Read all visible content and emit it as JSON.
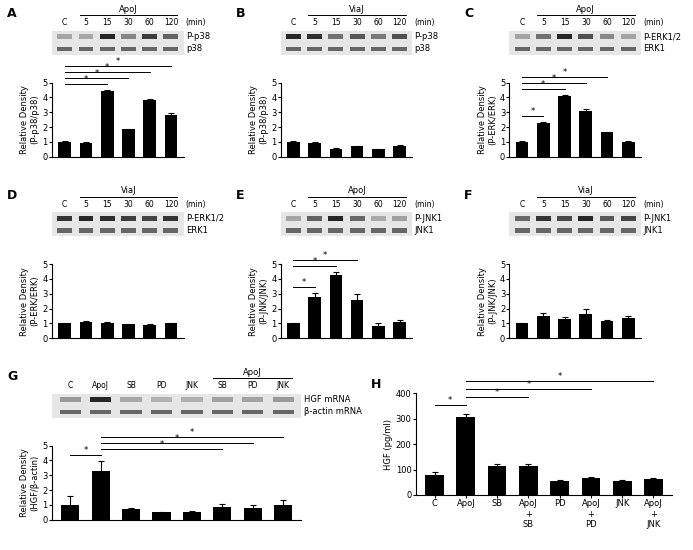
{
  "chart_data": [
    {
      "panel": "A",
      "type": "bar",
      "categories": [
        "C",
        "5",
        "15",
        "30",
        "60",
        "120"
      ],
      "values": [
        1.0,
        0.95,
        4.4,
        1.85,
        3.8,
        2.8
      ],
      "errors": [
        0.08,
        0.05,
        0.12,
        0.05,
        0.12,
        0.12
      ],
      "ylim": [
        0,
        5
      ],
      "yticks": [
        0,
        1,
        2,
        3,
        4,
        5
      ],
      "ylabel": "Relative Density\n(P-p38/p38)",
      "color": "#000000",
      "tick_labels": "y",
      "blot": {
        "rows": [
          "P-p38",
          "p38"
        ],
        "header": "ApoJ",
        "header_span": [
          1,
          5
        ],
        "unit": "(min)"
      },
      "significance": [
        {
          "from": 0,
          "to": 2,
          "label": "*"
        },
        {
          "from": 0,
          "to": 3,
          "label": "*"
        },
        {
          "from": 0,
          "to": 4,
          "label": "*"
        },
        {
          "from": 0,
          "to": 5,
          "label": "*"
        }
      ]
    },
    {
      "panel": "B",
      "type": "bar",
      "categories": [
        "C",
        "5",
        "15",
        "30",
        "60",
        "120"
      ],
      "values": [
        1.0,
        0.95,
        0.55,
        0.7,
        0.5,
        0.75
      ],
      "errors": [
        0.05,
        0.04,
        0.03,
        0.04,
        0.03,
        0.04
      ],
      "ylim": [
        0,
        5
      ],
      "yticks": [
        0,
        1,
        2,
        3,
        4,
        5
      ],
      "ylabel": "Relative Density\n(P-p38/p38)",
      "color": "#000000",
      "tick_labels": "y",
      "blot": {
        "rows": [
          "P-p38",
          "p38"
        ],
        "header": "ViaJ",
        "header_span": [
          1,
          5
        ],
        "unit": "(min)"
      },
      "significance": []
    },
    {
      "panel": "C",
      "type": "bar",
      "categories": [
        "C",
        "5",
        "15",
        "30",
        "60",
        "120"
      ],
      "values": [
        1.0,
        2.25,
        4.1,
        3.1,
        1.65,
        1.0
      ],
      "errors": [
        0.05,
        0.08,
        0.06,
        0.1,
        0.05,
        0.05
      ],
      "ylim": [
        0,
        5
      ],
      "yticks": [
        0,
        1,
        2,
        3,
        4,
        5
      ],
      "ylabel": "Relative Density\n(P-ERK/ERK)",
      "color": "#000000",
      "tick_labels": "y",
      "blot": {
        "rows": [
          "P-ERK1/2",
          "ERK1"
        ],
        "header": "ApoJ",
        "header_span": [
          1,
          5
        ],
        "unit": "(min)"
      },
      "significance": [
        {
          "from": 0,
          "to": 1,
          "label": "*"
        },
        {
          "from": 0,
          "to": 2,
          "label": "*"
        },
        {
          "from": 0,
          "to": 3,
          "label": "*"
        },
        {
          "from": 0,
          "to": 4,
          "label": "*"
        }
      ]
    },
    {
      "panel": "D",
      "type": "bar",
      "categories": [
        "C",
        "5",
        "15",
        "30",
        "60",
        "120"
      ],
      "values": [
        1.0,
        1.1,
        1.05,
        0.95,
        0.9,
        1.0
      ],
      "errors": [
        0.03,
        0.03,
        0.03,
        0.03,
        0.04,
        0.03
      ],
      "ylim": [
        0,
        5
      ],
      "yticks": [
        0,
        1,
        2,
        3,
        4,
        5
      ],
      "ylabel": "Relative Density\n(P-ERK/ERK)",
      "color": "#000000",
      "tick_labels": "y",
      "blot": {
        "rows": [
          "P-ERK1/2",
          "ERK1"
        ],
        "header": "ViaJ",
        "header_span": [
          1,
          5
        ],
        "unit": "(min)"
      },
      "significance": []
    },
    {
      "panel": "E",
      "type": "bar",
      "categories": [
        "C",
        "5",
        "15",
        "30",
        "60",
        "120"
      ],
      "values": [
        1.0,
        2.75,
        4.25,
        2.6,
        0.85,
        1.1
      ],
      "errors": [
        0.05,
        0.3,
        0.2,
        0.35,
        0.2,
        0.1
      ],
      "ylim": [
        0,
        5
      ],
      "yticks": [
        0,
        1,
        2,
        3,
        4,
        5
      ],
      "ylabel": "Relative Density\n(P-JNK/JNK)",
      "color": "#000000",
      "tick_labels": "y",
      "blot": {
        "rows": [
          "P-JNK1",
          "JNK1"
        ],
        "header": "ApoJ",
        "header_span": [
          1,
          5
        ],
        "unit": "(min)"
      },
      "significance": [
        {
          "from": 0,
          "to": 1,
          "label": "*"
        },
        {
          "from": 0,
          "to": 2,
          "label": "*"
        },
        {
          "from": 0,
          "to": 3,
          "label": "*"
        }
      ]
    },
    {
      "panel": "F",
      "type": "bar",
      "categories": [
        "C",
        "5",
        "15",
        "30",
        "60",
        "120"
      ],
      "values": [
        1.0,
        1.5,
        1.3,
        1.65,
        1.15,
        1.35
      ],
      "errors": [
        0.05,
        0.2,
        0.15,
        0.3,
        0.1,
        0.15
      ],
      "ylim": [
        0,
        5
      ],
      "yticks": [
        0,
        1,
        2,
        3,
        4,
        5
      ],
      "ylabel": "Relative Density\n(P-JNK/JNK)",
      "color": "#000000",
      "tick_labels": "y",
      "blot": {
        "rows": [
          "P-JNK1",
          "JNK1"
        ],
        "header": "ViaJ",
        "header_span": [
          1,
          5
        ],
        "unit": "(min)"
      },
      "significance": []
    },
    {
      "panel": "G",
      "type": "bar",
      "categories": [
        "C",
        "ApoJ",
        "SB",
        "PD",
        "JNK",
        "SB",
        "PD",
        "JNK"
      ],
      "values": [
        1.0,
        3.25,
        0.7,
        0.5,
        0.55,
        0.85,
        0.8,
        1.0
      ],
      "errors": [
        0.6,
        0.7,
        0.1,
        0.05,
        0.05,
        0.2,
        0.2,
        0.35
      ],
      "ylim": [
        0,
        5
      ],
      "yticks": [
        0,
        1,
        2,
        3,
        4,
        5
      ],
      "ylabel": "Relative Density\n(HGF/β-actin)",
      "color": "#000000",
      "tick_labels": "y",
      "blot": {
        "rows": [
          "HGF mRNA",
          "β-actin mRNA"
        ],
        "header": "ApoJ",
        "header_span": [
          5,
          7
        ]
      },
      "significance": [
        {
          "from": 0,
          "to": 1,
          "label": "*"
        },
        {
          "from": 1,
          "to": 5,
          "label": "*"
        },
        {
          "from": 1,
          "to": 6,
          "label": "*"
        },
        {
          "from": 1,
          "to": 7,
          "label": "*"
        }
      ]
    },
    {
      "panel": "H",
      "type": "bar",
      "categories": [
        "C",
        "ApoJ",
        "SB",
        "ApoJ\n+\nSB",
        "PD",
        "ApoJ\n+\nPD",
        "JNK",
        "ApoJ\n+\nJNK"
      ],
      "values": [
        80,
        305,
        115,
        115,
        55,
        68,
        55,
        62
      ],
      "errors": [
        10,
        15,
        5,
        8,
        3,
        3,
        3,
        3
      ],
      "ylim": [
        0,
        400
      ],
      "yticks": [
        0,
        100,
        200,
        300,
        400
      ],
      "ylabel": "HGF (pg/ml)",
      "color": "#000000",
      "tick_labels": true,
      "significance": [
        {
          "from": 0,
          "to": 1,
          "label": "*"
        },
        {
          "from": 1,
          "to": 3,
          "label": "*"
        },
        {
          "from": 1,
          "to": 5,
          "label": "*"
        },
        {
          "from": 1,
          "to": 7,
          "label": "*"
        }
      ]
    }
  ]
}
